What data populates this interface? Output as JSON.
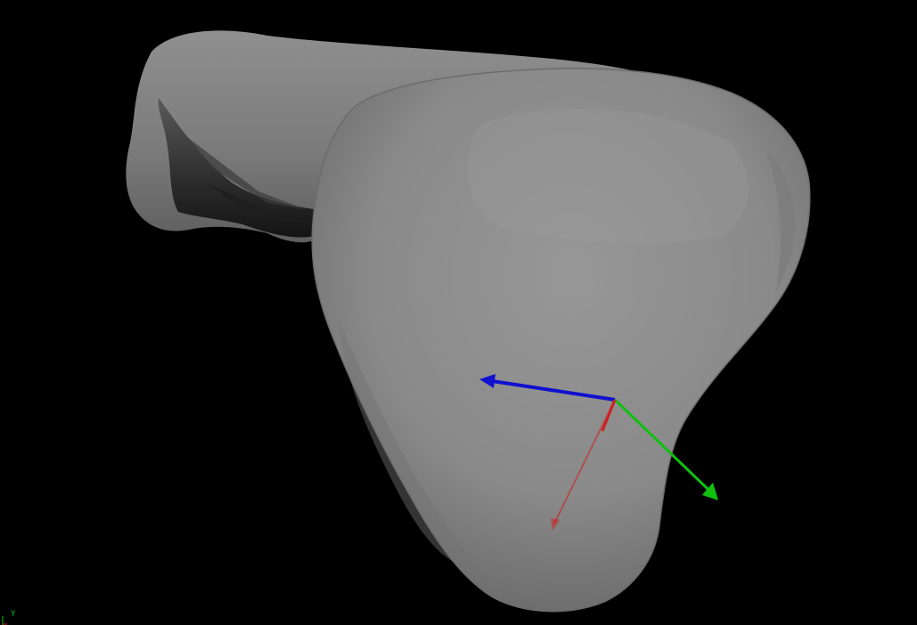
{
  "viewer": {
    "background_color": "#000000",
    "mesh_color": "#8a8a8a",
    "mesh_shadow_color": "#3a3a3a",
    "mesh_highlight_color": "#9c9c9c",
    "mesh_name": "bone-mesh"
  },
  "axes": {
    "x_color": "#cc2020",
    "y_color": "#10c010",
    "z_color": "#1010d0"
  },
  "orientation_widget": {
    "y_label": "Y",
    "x_color": "#cc2020",
    "y_color": "#10c010"
  }
}
